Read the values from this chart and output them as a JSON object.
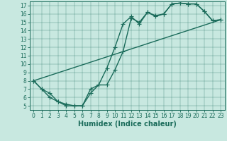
{
  "xlabel": "Humidex (Indice chaleur)",
  "background_color": "#c8e8e0",
  "line_color": "#1a6b5a",
  "xlim": [
    -0.5,
    23.5
  ],
  "ylim": [
    4.5,
    17.5
  ],
  "xticks": [
    0,
    1,
    2,
    3,
    4,
    5,
    6,
    7,
    8,
    9,
    10,
    11,
    12,
    13,
    14,
    15,
    16,
    17,
    18,
    19,
    20,
    21,
    22,
    23
  ],
  "yticks": [
    5,
    6,
    7,
    8,
    9,
    10,
    11,
    12,
    13,
    14,
    15,
    16,
    17
  ],
  "line1_x": [
    0,
    1,
    2,
    3,
    4,
    5,
    6,
    7,
    8,
    9,
    10,
    11,
    12,
    13,
    14,
    15,
    16,
    17,
    18,
    19,
    20,
    21,
    22,
    23
  ],
  "line1_y": [
    8.0,
    7.0,
    6.5,
    5.5,
    5.2,
    5.0,
    5.0,
    6.5,
    7.5,
    9.5,
    12.0,
    14.8,
    15.7,
    14.8,
    16.2,
    15.8,
    16.0,
    17.2,
    17.3,
    17.2,
    17.2,
    16.3,
    15.2,
    15.3
  ],
  "line2_x": [
    0,
    1,
    2,
    3,
    4,
    5,
    6,
    7,
    8,
    9,
    10,
    11,
    12,
    13,
    14,
    15,
    16,
    17,
    18,
    19,
    20,
    21,
    22,
    23
  ],
  "line2_y": [
    8.0,
    7.0,
    6.0,
    5.5,
    5.0,
    5.0,
    5.0,
    7.0,
    7.5,
    7.5,
    9.3,
    11.5,
    15.5,
    15.0,
    16.2,
    15.7,
    16.0,
    17.2,
    17.3,
    17.2,
    17.2,
    16.3,
    15.2,
    15.3
  ],
  "line3_x": [
    0,
    23
  ],
  "line3_y": [
    8.0,
    15.3
  ],
  "markersize": 4,
  "linewidth": 1.0,
  "xlabel_fontsize": 7,
  "tick_fontsize": 5.5
}
